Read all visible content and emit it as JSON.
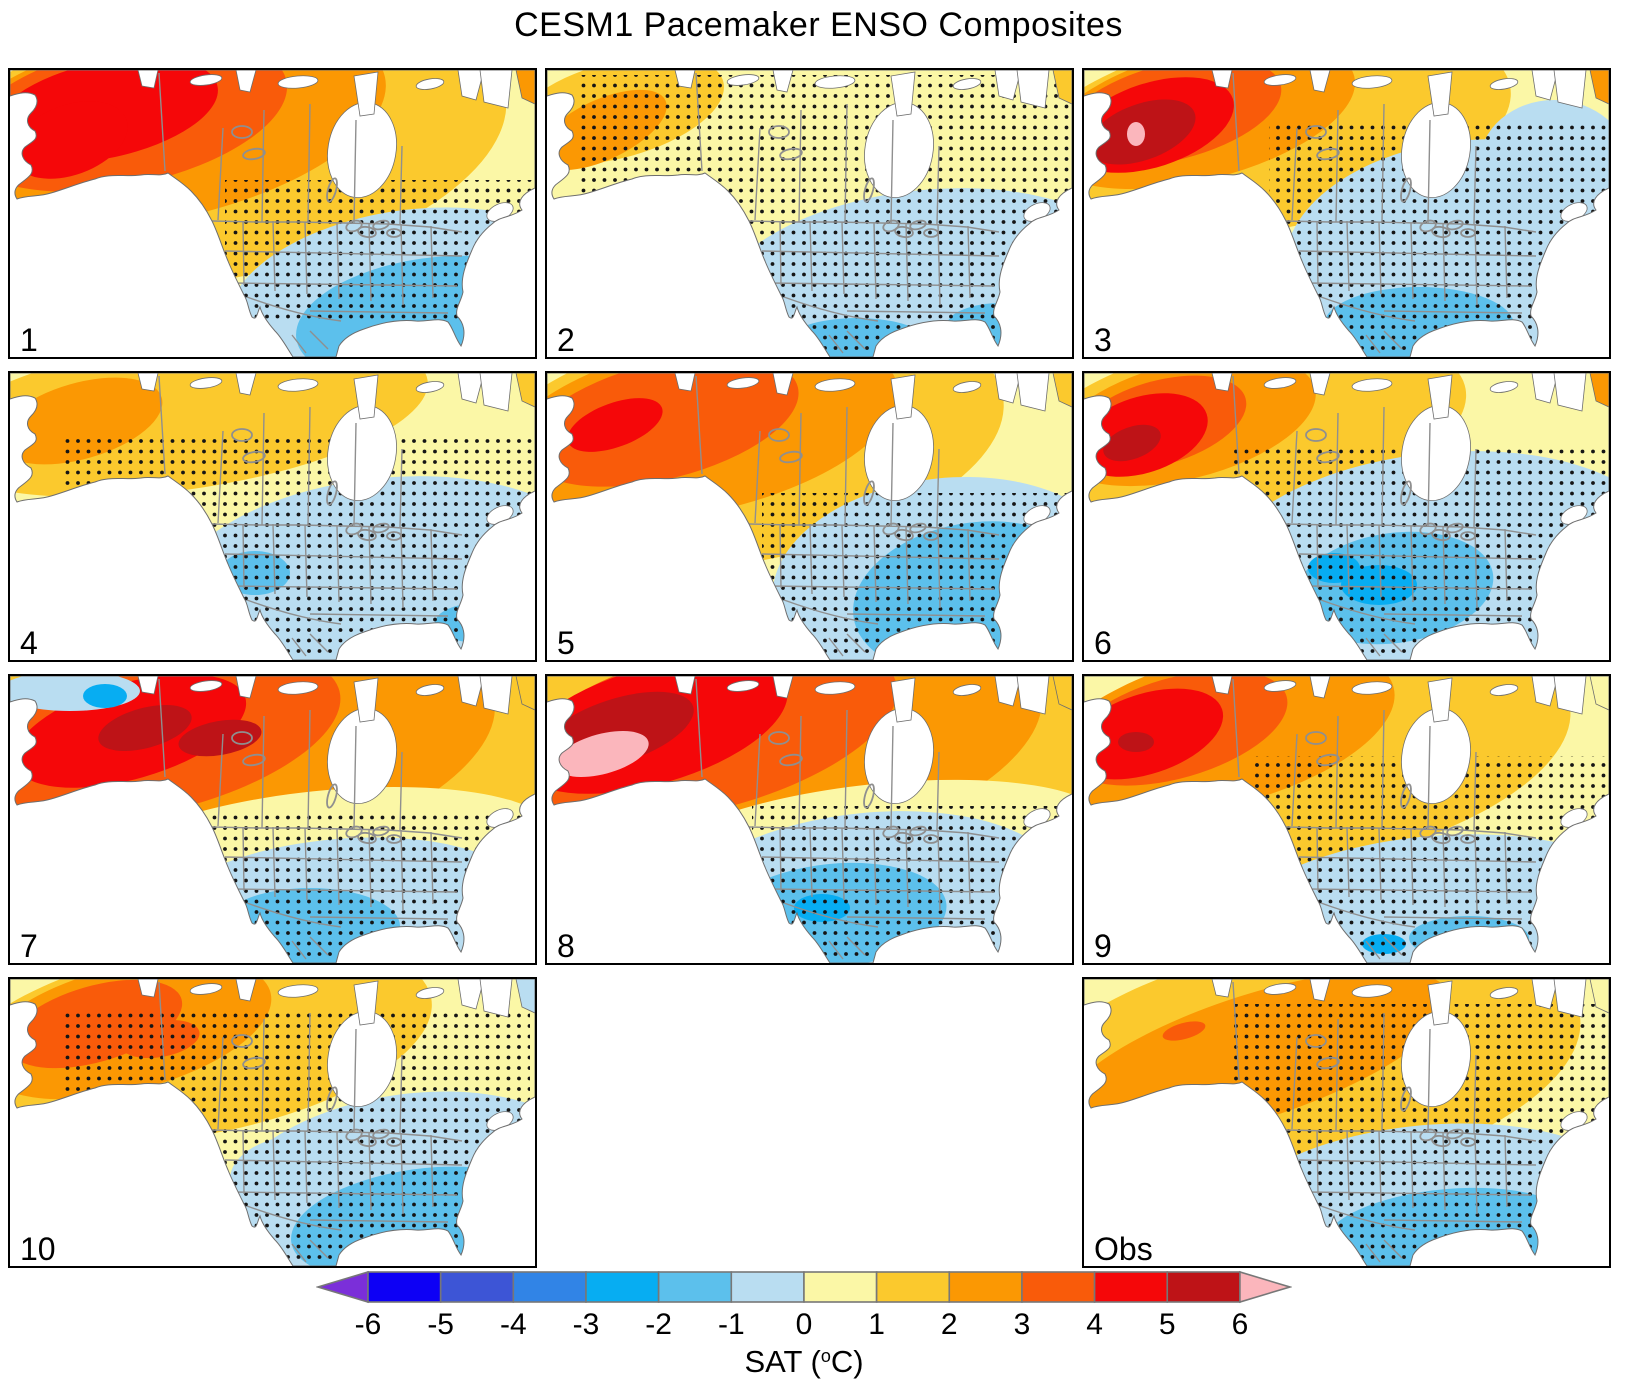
{
  "figure": {
    "title": "CESM1 Pacemaker ENSO Composites"
  },
  "palette": {
    "purple": "#7B2FD9",
    "m6": "#0D00F5",
    "m5": "#3D55D6",
    "m4": "#3184E6",
    "m3": "#07ADF2",
    "m2": "#5CC0EC",
    "m1": "#B9DDF1",
    "z0": "#FBF7A6",
    "z1": "#FBC92D",
    "z2": "#FB9803",
    "z3": "#F95B0A",
    "z4": "#F50709",
    "z5": "#BE1317",
    "pink": "#FBB6BC",
    "border_gray": "#8f8f8f",
    "coast_gray": "#6e6e6e"
  },
  "panels": [
    {
      "label": "1",
      "base": "z0",
      "corner": "z2",
      "layers": [
        [
          "z1",
          200,
          75,
          300,
          135,
          -10
        ],
        [
          "z2",
          150,
          55,
          230,
          95,
          -12
        ],
        [
          "z3",
          115,
          45,
          165,
          70,
          -12
        ],
        [
          "z4",
          95,
          40,
          115,
          48,
          -12
        ],
        [
          "z4",
          60,
          70,
          60,
          35,
          -20
        ],
        [
          "m1",
          400,
          235,
          185,
          95,
          -8
        ],
        [
          "m2",
          420,
          250,
          135,
          62,
          -8
        ]
      ],
      "stipple": [
        [
          215,
          110,
          310,
          140
        ]
      ]
    },
    {
      "label": "2",
      "base": "z0",
      "corner": "z1",
      "layers": [
        [
          "z1",
          70,
          40,
          110,
          48,
          -15
        ],
        [
          "z2",
          55,
          60,
          70,
          30,
          -25
        ],
        [
          "m1",
          380,
          225,
          215,
          105,
          -6
        ],
        [
          "m2",
          455,
          255,
          55,
          22,
          0
        ],
        [
          "m2",
          310,
          272,
          70,
          24,
          0
        ]
      ],
      "stipple": [
        [
          30,
          5,
          495,
          275
        ]
      ]
    },
    {
      "label": "3",
      "base": "z0",
      "corner": "z2",
      "layers": [
        [
          "z1",
          180,
          60,
          250,
          100,
          -10
        ],
        [
          "z2",
          115,
          45,
          160,
          65,
          -14
        ],
        [
          "z3",
          88,
          42,
          112,
          48,
          -14
        ],
        [
          "z4",
          68,
          55,
          85,
          42,
          -18
        ],
        [
          "z5",
          58,
          62,
          56,
          28,
          -20
        ],
        [
          "pink",
          52,
          64,
          9,
          12,
          0
        ],
        [
          "m1",
          390,
          185,
          190,
          115,
          -5
        ],
        [
          "m1",
          470,
          95,
          75,
          65,
          0
        ],
        [
          "m2",
          335,
          255,
          95,
          38,
          0
        ]
      ],
      "stipple": [
        [
          185,
          55,
          340,
          230
        ]
      ]
    },
    {
      "label": "4",
      "base": "z0",
      "corner": "z1",
      "layers": [
        [
          "z1",
          170,
          42,
          250,
          75,
          -8
        ],
        [
          "z2",
          70,
          48,
          85,
          38,
          -16
        ],
        [
          "m1",
          375,
          210,
          215,
          105,
          -6
        ],
        [
          "m2",
          245,
          200,
          35,
          22,
          0
        ],
        [
          "m2",
          470,
          250,
          45,
          20,
          0
        ]
      ],
      "stipple": [
        [
          55,
          60,
          470,
          225
        ]
      ]
    },
    {
      "label": "5",
      "base": "z0",
      "corner": "z1",
      "layers": [
        [
          "z1",
          190,
          70,
          270,
          120,
          -10
        ],
        [
          "z2",
          150,
          55,
          205,
          85,
          -12
        ],
        [
          "z3",
          115,
          48,
          140,
          58,
          -14
        ],
        [
          "z4",
          68,
          52,
          50,
          22,
          -20
        ],
        [
          "m1",
          400,
          210,
          175,
          105,
          -6
        ],
        [
          "m2",
          425,
          225,
          120,
          75,
          -10
        ]
      ],
      "stipple": [
        [
          215,
          120,
          310,
          165
        ]
      ]
    },
    {
      "label": "6",
      "base": "z0",
      "corner": "z2",
      "layers": [
        [
          "z1",
          160,
          55,
          225,
          90,
          -10
        ],
        [
          "z2",
          100,
          48,
          135,
          58,
          -14
        ],
        [
          "z3",
          75,
          50,
          90,
          42,
          -16
        ],
        [
          "z4",
          58,
          62,
          68,
          38,
          -18
        ],
        [
          "z5",
          48,
          70,
          30,
          16,
          -20
        ],
        [
          "m1",
          355,
          195,
          230,
          115,
          -6
        ],
        [
          "m2",
          310,
          215,
          100,
          55,
          -8
        ],
        [
          "m3",
          295,
          212,
          38,
          20,
          0
        ],
        [
          "m3",
          250,
          195,
          26,
          15,
          0
        ]
      ],
      "stipple": [
        [
          150,
          75,
          375,
          205
        ]
      ]
    },
    {
      "label": "7",
      "base": "z1",
      "corner": "z1",
      "layers": [
        [
          "z2",
          210,
          80,
          280,
          115,
          -12
        ],
        [
          "z3",
          150,
          60,
          185,
          75,
          -14
        ],
        [
          "z4",
          120,
          55,
          120,
          48,
          -16
        ],
        [
          "z5",
          135,
          52,
          48,
          20,
          -15
        ],
        [
          "z5",
          210,
          62,
          42,
          17,
          -10
        ],
        [
          "z0",
          310,
          185,
          240,
          70,
          -6
        ],
        [
          "m1",
          60,
          15,
          70,
          20,
          0
        ],
        [
          "m1",
          330,
          235,
          185,
          72,
          -5
        ],
        [
          "m2",
          300,
          250,
          90,
          38,
          0
        ],
        [
          "m3",
          95,
          20,
          22,
          12,
          0
        ]
      ],
      "stipple": [
        [
          190,
          135,
          335,
          150
        ]
      ]
    },
    {
      "label": "8",
      "base": "z1",
      "corner": "z1",
      "layers": [
        [
          "z2",
          215,
          75,
          285,
          115,
          -12
        ],
        [
          "z3",
          155,
          55,
          200,
          80,
          -14
        ],
        [
          "z4",
          105,
          50,
          140,
          58,
          -16
        ],
        [
          "z5",
          70,
          55,
          80,
          32,
          -18
        ],
        [
          "pink",
          55,
          78,
          48,
          20,
          -15
        ],
        [
          "z0",
          330,
          170,
          230,
          62,
          -6
        ],
        [
          "m1",
          320,
          225,
          195,
          88,
          -6
        ],
        [
          "m2",
          285,
          240,
          115,
          52,
          -6
        ],
        [
          "m3",
          275,
          232,
          28,
          14,
          0
        ]
      ],
      "stipple": [
        [
          205,
          130,
          320,
          155
        ]
      ]
    },
    {
      "label": "9",
      "base": "z0",
      "corner": "z0",
      "layers": [
        [
          "z1",
          210,
          78,
          280,
          115,
          -10
        ],
        [
          "z2",
          135,
          55,
          180,
          75,
          -14
        ],
        [
          "z3",
          92,
          52,
          115,
          50,
          -16
        ],
        [
          "z4",
          62,
          58,
          80,
          40,
          -18
        ],
        [
          "z5",
          52,
          66,
          18,
          10,
          0
        ],
        [
          "m1",
          350,
          235,
          200,
          75,
          -5
        ],
        [
          "m2",
          385,
          262,
          60,
          22,
          0
        ],
        [
          "m3",
          300,
          268,
          22,
          10,
          0
        ]
      ],
      "stipple": [
        [
          170,
          80,
          355,
          200
        ]
      ]
    },
    {
      "label": "10",
      "base": "z0",
      "corner": "m1",
      "layers": [
        [
          "z1",
          180,
          62,
          245,
          95,
          -10
        ],
        [
          "z2",
          115,
          50,
          150,
          62,
          -14
        ],
        [
          "z3",
          85,
          45,
          90,
          38,
          -16
        ],
        [
          "z3",
          150,
          60,
          40,
          18,
          -10
        ],
        [
          "m1",
          400,
          215,
          190,
          100,
          -8
        ],
        [
          "m1",
          300,
          200,
          80,
          45,
          0
        ],
        [
          "m2",
          410,
          245,
          130,
          55,
          -8
        ]
      ],
      "stipple": [
        [
          55,
          30,
          465,
          250
        ]
      ]
    },
    {
      "label": "Obs",
      "base": "z0",
      "corner": "z0",
      "obs": true,
      "layers": [
        [
          "z1",
          215,
          85,
          285,
          120,
          -10
        ],
        [
          "z2",
          170,
          78,
          205,
          62,
          -18
        ],
        [
          "z3",
          100,
          52,
          22,
          8,
          -15
        ],
        [
          "m1",
          345,
          228,
          200,
          82,
          -5
        ],
        [
          "m2",
          365,
          255,
          125,
          45,
          -5
        ]
      ],
      "stipple": [
        [
          150,
          25,
          375,
          255
        ]
      ]
    }
  ],
  "colorbar": {
    "left_arrow": "purple",
    "right_arrow": "pink",
    "segments": [
      "m6",
      "m5",
      "m4",
      "m3",
      "m2",
      "m1",
      "z0",
      "z1",
      "z2",
      "z3",
      "z4",
      "z5"
    ],
    "ticks": [
      "-6",
      "-5",
      "-4",
      "-3",
      "-2",
      "-1",
      "0",
      "1",
      "2",
      "3",
      "4",
      "5",
      "6"
    ],
    "label_pre": "SAT (",
    "label_deg": "o",
    "label_post": "C)"
  }
}
